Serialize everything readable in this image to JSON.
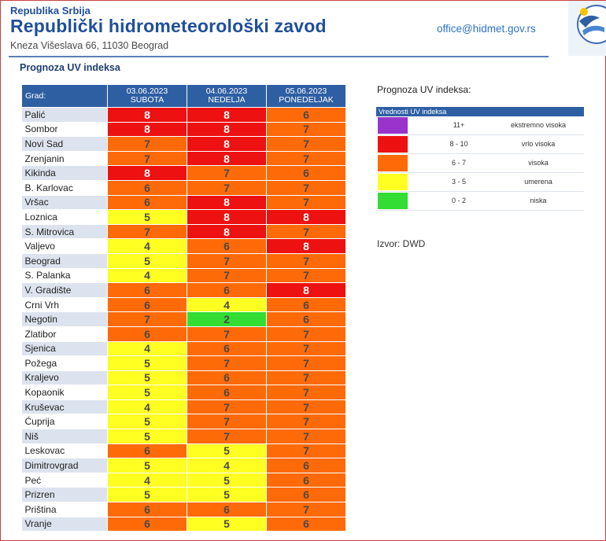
{
  "header": {
    "republic": "Republika Srbija",
    "institute": "Republički hidrometeorološki zavod",
    "address": "Kneza Višeslava 66, 11030 Beograd",
    "email": "office@hidmet.gov.rs"
  },
  "section_title": "Prognoza UV indeksa",
  "table": {
    "city_header": "Grad:",
    "days": [
      {
        "date": "03.06.2023",
        "name": "SUBOTA"
      },
      {
        "date": "04.06.2023",
        "name": "NEDELJA"
      },
      {
        "date": "05.06.2023",
        "name": "PONEDELJAK"
      }
    ],
    "rows": [
      {
        "city": "Palić",
        "values": [
          "8",
          "8",
          "6"
        ]
      },
      {
        "city": "Sombor",
        "values": [
          "8",
          "8",
          "7"
        ]
      },
      {
        "city": "Novi Sad",
        "values": [
          "7",
          "8",
          "7"
        ]
      },
      {
        "city": "Zrenjanin",
        "values": [
          "7",
          "8",
          "7"
        ]
      },
      {
        "city": "Kikinda",
        "values": [
          "8",
          "7",
          "6"
        ]
      },
      {
        "city": "B. Karlovac",
        "values": [
          "6",
          "7",
          "7"
        ]
      },
      {
        "city": "Vršac",
        "values": [
          "6",
          "8",
          "7"
        ]
      },
      {
        "city": "Loznica",
        "values": [
          "5",
          "8",
          "8"
        ]
      },
      {
        "city": "S. Mitrovica",
        "values": [
          "7",
          "8",
          "7"
        ]
      },
      {
        "city": "Valjevo",
        "values": [
          "4",
          "6",
          "8"
        ]
      },
      {
        "city": "Beograd",
        "values": [
          "5",
          "7",
          "7"
        ]
      },
      {
        "city": "S. Palanka",
        "values": [
          "4",
          "7",
          "7"
        ]
      },
      {
        "city": "V. Gradište",
        "values": [
          "6",
          "6",
          "8"
        ]
      },
      {
        "city": "Crni Vrh",
        "values": [
          "6",
          "4",
          "6"
        ]
      },
      {
        "city": "Negotin",
        "values": [
          "7",
          "2",
          "6"
        ]
      },
      {
        "city": "Zlatibor",
        "values": [
          "6",
          "7",
          "7"
        ]
      },
      {
        "city": "Sjenica",
        "values": [
          "4",
          "6",
          "7"
        ]
      },
      {
        "city": "Požega",
        "values": [
          "5",
          "7",
          "7"
        ]
      },
      {
        "city": "Kraljevo",
        "values": [
          "5",
          "6",
          "7"
        ]
      },
      {
        "city": "Kopaonik",
        "values": [
          "5",
          "6",
          "7"
        ]
      },
      {
        "city": "Kruševac",
        "values": [
          "4",
          "7",
          "7"
        ]
      },
      {
        "city": "Ćuprija",
        "values": [
          "5",
          "7",
          "7"
        ]
      },
      {
        "city": "Niš",
        "values": [
          "5",
          "7",
          "7"
        ]
      },
      {
        "city": "Leskovac",
        "values": [
          "6",
          "5",
          "7"
        ]
      },
      {
        "city": "Dimitrovgrad",
        "values": [
          "5",
          "4",
          "6"
        ]
      },
      {
        "city": "Peć",
        "values": [
          "4",
          "5",
          "6"
        ]
      },
      {
        "city": "Prizren",
        "values": [
          "5",
          "5",
          "6"
        ]
      },
      {
        "city": "Priština",
        "values": [
          "6",
          "6",
          "7"
        ]
      },
      {
        "city": "Vranje",
        "values": [
          "6",
          "5",
          "6"
        ]
      }
    ]
  },
  "legend": {
    "title": "Prognoza UV indeksa:",
    "header": "Vrednosti UV indeksa",
    "items": [
      {
        "range": "11+",
        "label": "ekstremno visoka",
        "color": "#9933cc"
      },
      {
        "range": "8 - 10",
        "label": "vrlo visoka",
        "color": "#ee1111"
      },
      {
        "range": "6 - 7",
        "label": "visoka",
        "color": "#ff6a08"
      },
      {
        "range": "3 - 5",
        "label": "umerena",
        "color": "#ffff22"
      },
      {
        "range": "0 - 2",
        "label": "niska",
        "color": "#33dd33"
      }
    ]
  },
  "source": "Izvor: DWD"
}
